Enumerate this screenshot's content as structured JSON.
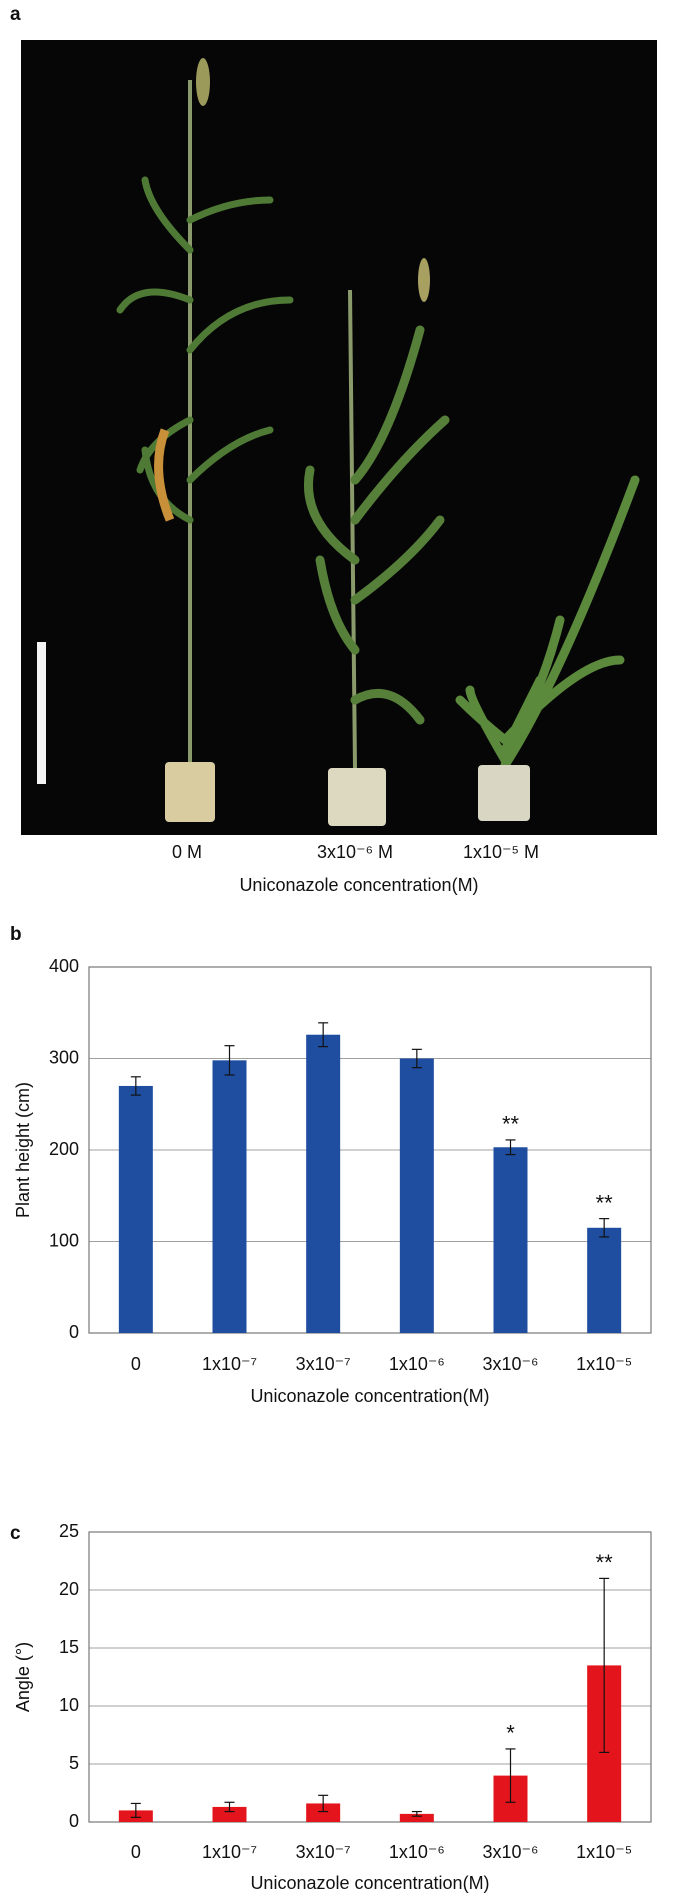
{
  "panel_a": {
    "label": "a",
    "plant_labels": [
      "0 M",
      "3x10⁻⁶ M",
      "1x10⁻⁵ M"
    ],
    "xlabel": "Uniconazole concentration(M)"
  },
  "chart_data": [
    {
      "type": "bar",
      "panel": "b",
      "ylabel": "Plant height (cm)",
      "xlabel": "Uniconazole concentration(M)",
      "categories": [
        "0",
        "1x10⁻⁷",
        "3x10⁻⁷",
        "1x10⁻⁶",
        "3x10⁻⁶",
        "1x10⁻⁵"
      ],
      "values": [
        270,
        298,
        326,
        300,
        203,
        115
      ],
      "errors": [
        10,
        16,
        13,
        10,
        8,
        10
      ],
      "significance": [
        null,
        null,
        null,
        null,
        "**",
        "**"
      ],
      "color": "#1f4ea0",
      "ylim": [
        0,
        400
      ],
      "yticks": [
        0,
        100,
        200,
        300,
        400
      ],
      "grid": true
    },
    {
      "type": "bar",
      "panel": "c",
      "ylabel": "Angle (°)",
      "xlabel": "Uniconazole concentration(M)",
      "categories": [
        "0",
        "1x10⁻⁷",
        "3x10⁻⁷",
        "1x10⁻⁶",
        "3x10⁻⁶",
        "1x10⁻⁵"
      ],
      "values": [
        1.0,
        1.3,
        1.6,
        0.7,
        4.0,
        13.5
      ],
      "errors": [
        0.6,
        0.4,
        0.7,
        0.2,
        2.3,
        7.5
      ],
      "significance": [
        null,
        null,
        null,
        null,
        "*",
        "**"
      ],
      "color": "#e3141c",
      "ylim": [
        0,
        25
      ],
      "yticks": [
        0,
        5,
        10,
        15,
        20,
        25
      ],
      "grid": true
    }
  ]
}
